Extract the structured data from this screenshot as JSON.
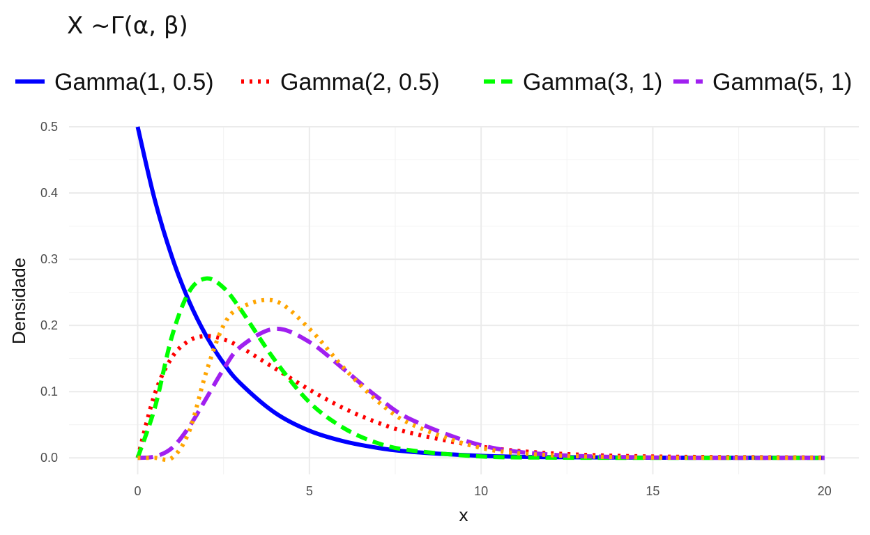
{
  "chart_data": {
    "type": "line",
    "title": "X ~Γ(α, β)",
    "xlabel": "x",
    "ylabel": "Densidade",
    "xlim": [
      -2,
      21
    ],
    "ylim": [
      -0.025,
      0.5
    ],
    "x_ticks": [
      "0",
      "5",
      "10",
      "15",
      "20"
    ],
    "y_ticks": [
      "0.0",
      "0.1",
      "0.2",
      "0.3",
      "0.4",
      "0.5"
    ],
    "grid": true,
    "legend_position": "top",
    "x": [
      0,
      0.5,
      1,
      1.5,
      2,
      2.5,
      3,
      4,
      5,
      6,
      7,
      8,
      10,
      12,
      15,
      20
    ],
    "series": [
      {
        "name": "Gamma(1, 0.5)",
        "color": "#0000ff",
        "dash": "solid",
        "values": [
          0.5,
          0.389,
          0.303,
          0.236,
          0.184,
          0.143,
          0.112,
          0.068,
          0.041,
          0.025,
          0.015,
          0.009,
          0.003,
          0.001,
          0.0003,
          0.0
        ]
      },
      {
        "name": "Gamma(2, 0.5)",
        "color": "#ff0000",
        "dash": "dotted",
        "values": [
          0.0,
          0.097,
          0.152,
          0.177,
          0.184,
          0.179,
          0.167,
          0.135,
          0.103,
          0.075,
          0.053,
          0.037,
          0.017,
          0.007,
          0.002,
          0.0005
        ]
      },
      {
        "name": "Gamma(3, 1)",
        "color": "#00ff00",
        "dash": "dashed",
        "values": [
          0.0,
          0.076,
          0.184,
          0.251,
          0.271,
          0.257,
          0.224,
          0.147,
          0.084,
          0.045,
          0.022,
          0.011,
          0.002,
          0.0004,
          0.0,
          0.0
        ]
      },
      {
        "name": "Gamma(5, 1)",
        "color": "#a020f0",
        "dash": "longdash",
        "values": [
          0.0,
          0.002,
          0.015,
          0.047,
          0.09,
          0.134,
          0.168,
          0.195,
          0.175,
          0.134,
          0.091,
          0.057,
          0.019,
          0.005,
          0.0006,
          0.0
        ]
      },
      {
        "name": "",
        "color": "#ffa500",
        "dash": "dotted",
        "in_legend": false,
        "values": [
          0.0,
          0.0,
          0.0,
          0.04,
          0.13,
          0.2,
          0.227,
          0.237,
          0.195,
          0.136,
          0.085,
          0.05,
          0.015,
          0.004,
          0.0005,
          0.0
        ]
      }
    ]
  }
}
